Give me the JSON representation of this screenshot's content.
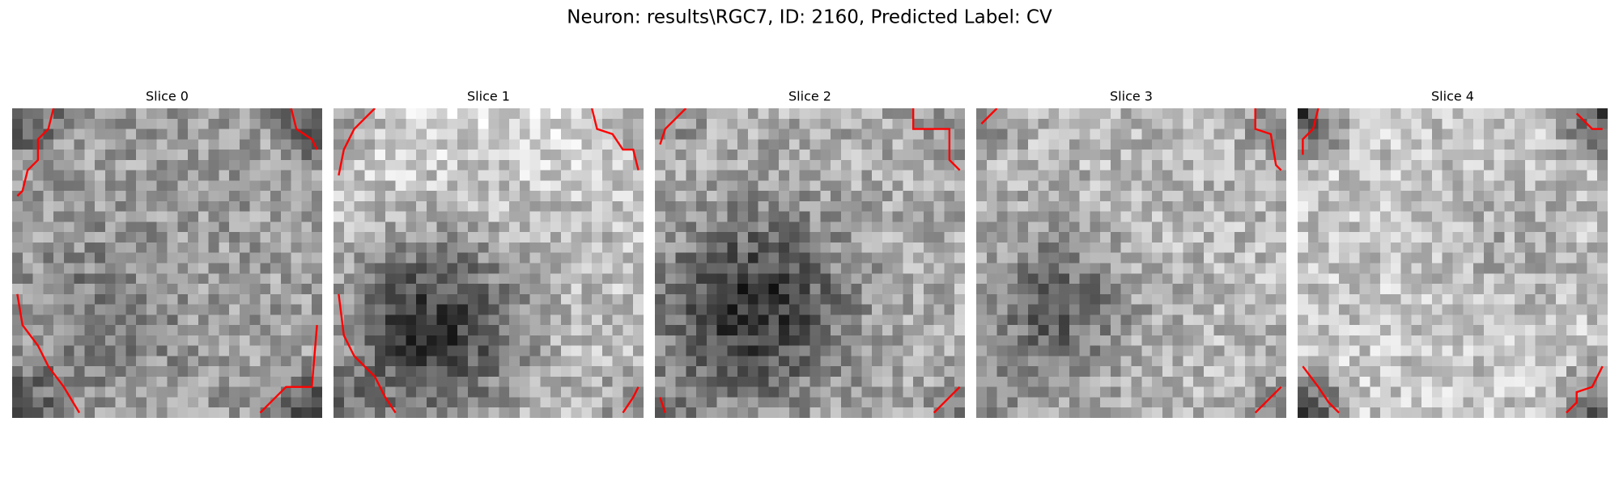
{
  "title": "Neuron: results\\RGC7, ID: 2160, Predicted Label: CV",
  "panels": [
    {
      "title": "Slice 0"
    },
    {
      "title": "Slice 1"
    },
    {
      "title": "Slice 2"
    },
    {
      "title": "Slice 3"
    },
    {
      "title": "Slice 4"
    }
  ]
}
